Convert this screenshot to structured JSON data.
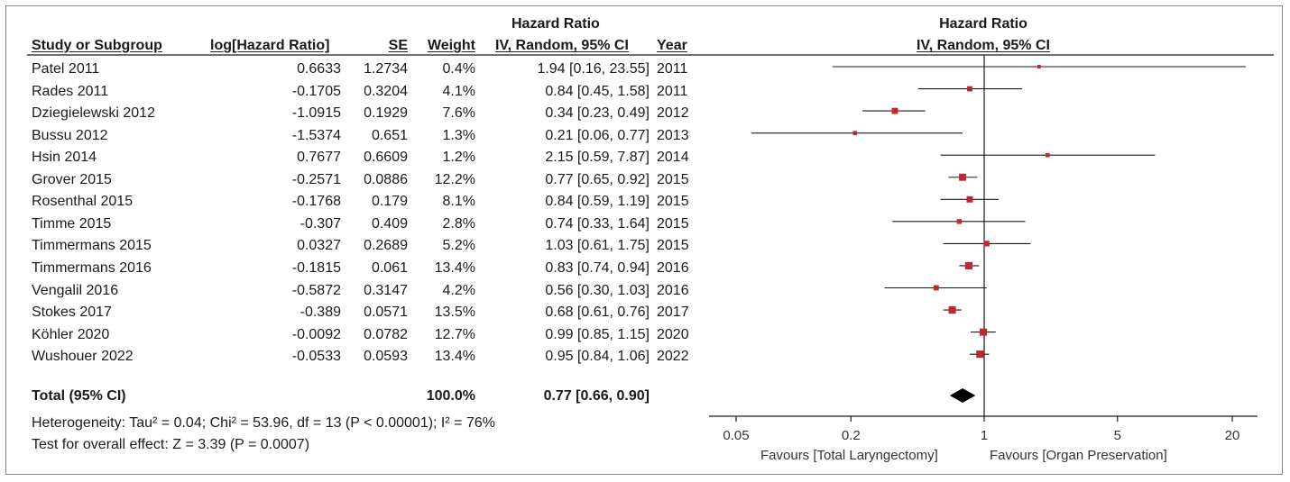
{
  "table": {
    "super_header": "Hazard Ratio",
    "columns": [
      "Study or Subgroup",
      "log[Hazard Ratio]",
      "SE",
      "Weight",
      "IV, Random, 95% CI",
      "Year"
    ],
    "rows": [
      {
        "study": "Patel 2011",
        "log_hr": "0.6633",
        "se": "1.2734",
        "weight": "0.4%",
        "ci": "1.94 [0.16, 23.55]",
        "year": "2011"
      },
      {
        "study": "Rades 2011",
        "log_hr": "-0.1705",
        "se": "0.3204",
        "weight": "4.1%",
        "ci": "0.84 [0.45, 1.58]",
        "year": "2011"
      },
      {
        "study": "Dziegielewski 2012",
        "log_hr": "-1.0915",
        "se": "0.1929",
        "weight": "7.6%",
        "ci": "0.34 [0.23, 0.49]",
        "year": "2012"
      },
      {
        "study": "Bussu 2012",
        "log_hr": "-1.5374",
        "se": "0.651",
        "weight": "1.3%",
        "ci": "0.21 [0.06, 0.77]",
        "year": "2013"
      },
      {
        "study": "Hsin 2014",
        "log_hr": "0.7677",
        "se": "0.6609",
        "weight": "1.2%",
        "ci": "2.15 [0.59, 7.87]",
        "year": "2014"
      },
      {
        "study": "Grover 2015",
        "log_hr": "-0.2571",
        "se": "0.0886",
        "weight": "12.2%",
        "ci": "0.77 [0.65, 0.92]",
        "year": "2015"
      },
      {
        "study": "Rosenthal 2015",
        "log_hr": "-0.1768",
        "se": "0.179",
        "weight": "8.1%",
        "ci": "0.84 [0.59, 1.19]",
        "year": "2015"
      },
      {
        "study": "Timme 2015",
        "log_hr": "-0.307",
        "se": "0.409",
        "weight": "2.8%",
        "ci": "0.74 [0.33, 1.64]",
        "year": "2015"
      },
      {
        "study": "Timmermans 2015",
        "log_hr": "0.0327",
        "se": "0.2689",
        "weight": "5.2%",
        "ci": "1.03 [0.61, 1.75]",
        "year": "2015"
      },
      {
        "study": "Timmermans 2016",
        "log_hr": "-0.1815",
        "se": "0.061",
        "weight": "13.4%",
        "ci": "0.83 [0.74, 0.94]",
        "year": "2016"
      },
      {
        "study": "Vengalil 2016",
        "log_hr": "-0.5872",
        "se": "0.3147",
        "weight": "4.2%",
        "ci": "0.56 [0.30, 1.03]",
        "year": "2016"
      },
      {
        "study": "Stokes 2017",
        "log_hr": "-0.389",
        "se": "0.0571",
        "weight": "13.5%",
        "ci": "0.68 [0.61, 0.76]",
        "year": "2017"
      },
      {
        "study": "Köhler 2020",
        "log_hr": "-0.0092",
        "se": "0.0782",
        "weight": "12.7%",
        "ci": "0.99 [0.85, 1.15]",
        "year": "2020"
      },
      {
        "study": "Wushouer 2022",
        "log_hr": "-0.0533",
        "se": "0.0593",
        "weight": "13.4%",
        "ci": "0.95 [0.84, 1.06]",
        "year": "2022"
      }
    ],
    "total": {
      "label": "Total (95% CI)",
      "weight": "100.0%",
      "ci": "0.77 [0.66, 0.90]"
    },
    "heterogeneity": "Heterogeneity: Tau² = 0.04; Chi² = 53.96, df = 13 (P < 0.00001); I² = 76%",
    "overall_effect": "Test for overall effect: Z = 3.39 (P = 0.0007)"
  },
  "chart_data": {
    "type": "forest",
    "title": "Hazard Ratio",
    "subtitle": "IV, Random, 95% CI",
    "x_scale": "log",
    "xlim": [
      0.05,
      20
    ],
    "x_ticks": [
      0.05,
      0.2,
      1,
      5,
      20
    ],
    "x_tick_labels": [
      "0.05",
      "0.2",
      "1",
      "5",
      "20"
    ],
    "reference_line": 1,
    "favours_left": "Favours [Total Laryngectomy]",
    "favours_right": "Favours [Organ Preservation]",
    "marker_color": "#c0272d",
    "line_color": "#1a1a1a",
    "studies": [
      {
        "name": "Patel 2011",
        "hr": 1.94,
        "lower": 0.16,
        "upper": 23.55,
        "weight": 0.4
      },
      {
        "name": "Rades 2011",
        "hr": 0.84,
        "lower": 0.45,
        "upper": 1.58,
        "weight": 4.1
      },
      {
        "name": "Dziegielewski 2012",
        "hr": 0.34,
        "lower": 0.23,
        "upper": 0.49,
        "weight": 7.6
      },
      {
        "name": "Bussu 2012",
        "hr": 0.21,
        "lower": 0.06,
        "upper": 0.77,
        "weight": 1.3
      },
      {
        "name": "Hsin 2014",
        "hr": 2.15,
        "lower": 0.59,
        "upper": 7.87,
        "weight": 1.2
      },
      {
        "name": "Grover 2015",
        "hr": 0.77,
        "lower": 0.65,
        "upper": 0.92,
        "weight": 12.2
      },
      {
        "name": "Rosenthal 2015",
        "hr": 0.84,
        "lower": 0.59,
        "upper": 1.19,
        "weight": 8.1
      },
      {
        "name": "Timme 2015",
        "hr": 0.74,
        "lower": 0.33,
        "upper": 1.64,
        "weight": 2.8
      },
      {
        "name": "Timmermans 2015",
        "hr": 1.03,
        "lower": 0.61,
        "upper": 1.75,
        "weight": 5.2
      },
      {
        "name": "Timmermans 2016",
        "hr": 0.83,
        "lower": 0.74,
        "upper": 0.94,
        "weight": 13.4
      },
      {
        "name": "Vengalil 2016",
        "hr": 0.56,
        "lower": 0.3,
        "upper": 1.03,
        "weight": 4.2
      },
      {
        "name": "Stokes 2017",
        "hr": 0.68,
        "lower": 0.61,
        "upper": 0.76,
        "weight": 13.5
      },
      {
        "name": "Köhler 2020",
        "hr": 0.99,
        "lower": 0.85,
        "upper": 1.15,
        "weight": 12.7
      },
      {
        "name": "Wushouer 2022",
        "hr": 0.95,
        "lower": 0.84,
        "upper": 1.06,
        "weight": 13.4
      }
    ],
    "total": {
      "hr": 0.77,
      "lower": 0.66,
      "upper": 0.9
    }
  }
}
